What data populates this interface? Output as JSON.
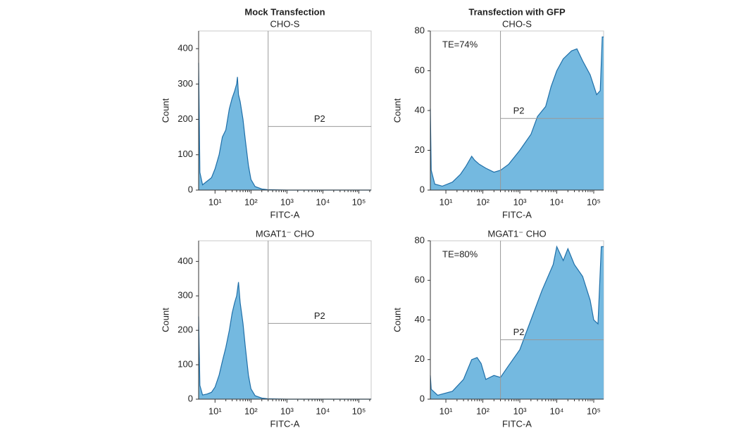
{
  "chart_data": [
    {
      "type": "area",
      "title": "Mock Transfection",
      "subtitle": "CHO-S",
      "xlabel": "FITC-A",
      "ylabel": "Count",
      "log_x": true,
      "xlim": [
        3.5,
        220000
      ],
      "ylim": [
        0,
        450
      ],
      "yticks": [
        0,
        100,
        200,
        300,
        400
      ],
      "xticks": [
        {
          "value": 10,
          "label": "10¹"
        },
        {
          "value": 100,
          "label": "10²"
        },
        {
          "value": 1000,
          "label": "10³"
        },
        {
          "value": 10000,
          "label": "10⁴"
        },
        {
          "value": 100000,
          "label": "10⁵"
        }
      ],
      "gate": {
        "label": "P2",
        "x": 300,
        "y": 180
      },
      "color": "#74b9e0",
      "x": [
        3.5,
        3.8,
        4.5,
        6,
        8,
        10,
        13,
        16,
        20,
        25,
        30,
        35,
        40,
        42,
        45,
        50,
        60,
        70,
        85,
        100,
        130,
        200,
        300,
        1000,
        220000
      ],
      "values": [
        360,
        50,
        15,
        25,
        35,
        60,
        100,
        150,
        170,
        230,
        260,
        280,
        300,
        320,
        270,
        250,
        200,
        140,
        70,
        30,
        10,
        3,
        1,
        0,
        0
      ]
    },
    {
      "type": "area",
      "title": "Transfection with GFP",
      "subtitle": "CHO-S",
      "xlabel": "FITC-A",
      "ylabel": "Count",
      "log_x": true,
      "annotation": "TE=74%",
      "xlim": [
        3.8,
        185000
      ],
      "ylim": [
        0,
        80
      ],
      "yticks": [
        0,
        20,
        40,
        60,
        80
      ],
      "xticks": [
        {
          "value": 10,
          "label": "10¹"
        },
        {
          "value": 100,
          "label": "10²"
        },
        {
          "value": 1000,
          "label": "10³"
        },
        {
          "value": 10000,
          "label": "10⁴"
        },
        {
          "value": 100000,
          "label": "10⁵"
        }
      ],
      "gate": {
        "label": "P2",
        "x": 300,
        "y": 36
      },
      "color": "#74b9e0",
      "x": [
        3.8,
        4,
        5,
        8,
        15,
        25,
        35,
        50,
        60,
        80,
        120,
        200,
        300,
        500,
        1000,
        2000,
        3000,
        5000,
        7000,
        10000,
        15000,
        25000,
        35000,
        50000,
        80000,
        120000,
        150000,
        170000,
        185000
      ],
      "values": [
        41,
        10,
        3,
        2,
        4,
        8,
        12,
        17,
        15,
        13,
        11,
        9,
        10,
        13,
        20,
        28,
        37,
        42,
        52,
        60,
        66,
        70,
        71,
        65,
        58,
        48,
        50,
        77,
        77
      ]
    },
    {
      "type": "area",
      "subtitle": "MGAT1⁻ CHO",
      "xlabel": "FITC-A",
      "ylabel": "Count",
      "log_x": true,
      "xlim": [
        3.5,
        220000
      ],
      "ylim": [
        0,
        460
      ],
      "yticks": [
        0,
        100,
        200,
        300,
        400
      ],
      "xticks": [
        {
          "value": 10,
          "label": "10¹"
        },
        {
          "value": 100,
          "label": "10²"
        },
        {
          "value": 1000,
          "label": "10³"
        },
        {
          "value": 10000,
          "label": "10⁴"
        },
        {
          "value": 100000,
          "label": "10⁵"
        }
      ],
      "gate": {
        "label": "P2",
        "x": 300,
        "y": 220
      },
      "color": "#74b9e0",
      "x": [
        3.5,
        3.8,
        4.5,
        6,
        8,
        10,
        13,
        16,
        20,
        25,
        30,
        35,
        40,
        45,
        50,
        60,
        70,
        85,
        100,
        130,
        200,
        300,
        1000,
        220000
      ],
      "values": [
        240,
        40,
        12,
        15,
        20,
        35,
        70,
        110,
        150,
        200,
        250,
        280,
        300,
        340,
        280,
        220,
        150,
        70,
        30,
        10,
        3,
        1,
        0,
        0
      ]
    },
    {
      "type": "area",
      "subtitle": "MGAT1⁻ CHO",
      "xlabel": "FITC-A",
      "ylabel": "Count",
      "log_x": true,
      "annotation": "TE=80%",
      "xlim": [
        3.8,
        185000
      ],
      "ylim": [
        0,
        80
      ],
      "yticks": [
        0,
        20,
        40,
        60,
        80
      ],
      "xticks": [
        {
          "value": 10,
          "label": "10¹"
        },
        {
          "value": 100,
          "label": "10²"
        },
        {
          "value": 1000,
          "label": "10³"
        },
        {
          "value": 10000,
          "label": "10⁴"
        },
        {
          "value": 100000,
          "label": "10⁵"
        }
      ],
      "gate": {
        "label": "P2",
        "x": 300,
        "y": 30
      },
      "color": "#74b9e0",
      "x": [
        3.8,
        4,
        6,
        15,
        30,
        50,
        70,
        90,
        120,
        200,
        300,
        500,
        1000,
        2000,
        4000,
        8000,
        10000,
        15000,
        20000,
        30000,
        50000,
        80000,
        100000,
        130000,
        160000,
        185000
      ],
      "values": [
        12,
        5,
        2,
        4,
        10,
        20,
        21,
        18,
        10,
        12,
        11,
        17,
        25,
        40,
        55,
        68,
        77,
        70,
        76,
        68,
        62,
        50,
        40,
        38,
        77,
        77
      ]
    }
  ]
}
